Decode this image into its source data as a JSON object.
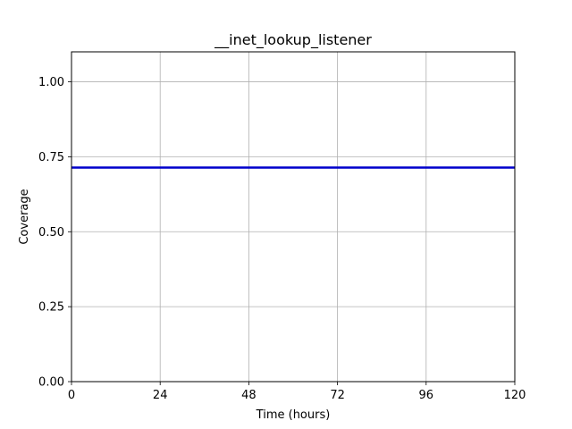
{
  "chart_data": {
    "type": "line",
    "title": "__inet_lookup_listener",
    "xlabel": "Time (hours)",
    "ylabel": "Coverage",
    "xlim": [
      0,
      120
    ],
    "ylim": [
      0,
      1.1
    ],
    "x_ticks": [
      0,
      24,
      48,
      72,
      96,
      120
    ],
    "x_tick_labels": [
      "0",
      "24",
      "48",
      "72",
      "96",
      "120"
    ],
    "y_ticks": [
      0,
      0.25,
      0.5,
      0.75,
      1.0
    ],
    "y_tick_labels": [
      "0.00",
      "0.25",
      "0.50",
      "0.75",
      "1.00"
    ],
    "grid": true,
    "series": [
      {
        "color": "#0000cc",
        "x": [
          0,
          120
        ],
        "y": [
          0.714,
          0.714
        ]
      }
    ]
  }
}
